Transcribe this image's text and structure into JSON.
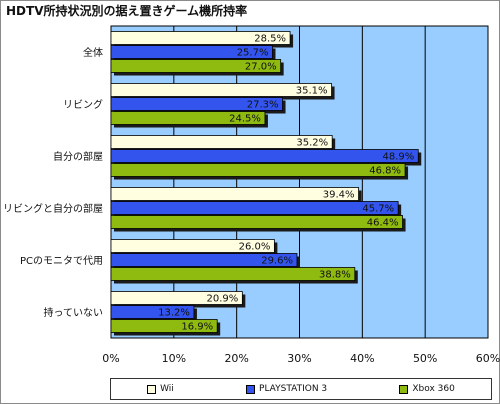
{
  "chart_data": {
    "type": "bar",
    "orientation": "horizontal",
    "title": "HDTV所持状況別の据え置きゲーム機所持率",
    "categories": [
      "全体",
      "リビング",
      "自分の部屋",
      "リビングと自分の部屋",
      "PCのモニタで代用",
      "持っていない"
    ],
    "series": [
      {
        "name": "Wii",
        "color": "#fffee0",
        "values": [
          28.5,
          35.1,
          35.2,
          39.4,
          26.0,
          20.9
        ]
      },
      {
        "name": "PLAYSTATION 3",
        "color": "#3355ee",
        "values": [
          25.7,
          27.3,
          48.9,
          45.7,
          29.6,
          13.2
        ]
      },
      {
        "name": "Xbox 360",
        "color": "#8fba10",
        "values": [
          27.0,
          24.5,
          46.8,
          46.4,
          38.8,
          16.9
        ]
      }
    ],
    "value_labels": {
      "Wii": [
        "28.5%",
        "35.1%",
        "35.2%",
        "39.4%",
        "26.0%",
        "20.9%"
      ],
      "PLAYSTATION 3": [
        "25.7%",
        "27.3%",
        "48.9%",
        "45.7%",
        "29.6%",
        "13.2%"
      ],
      "Xbox 360": [
        "27.0%",
        "24.5%",
        "46.8%",
        "46.4%",
        "38.8%",
        "16.9%"
      ]
    },
    "xlim": [
      0,
      60
    ],
    "x_ticks": [
      "0%",
      "10%",
      "20%",
      "30%",
      "40%",
      "50%",
      "60%"
    ],
    "grid": true,
    "legend_position": "bottom",
    "plot_background": "#99ccff"
  }
}
